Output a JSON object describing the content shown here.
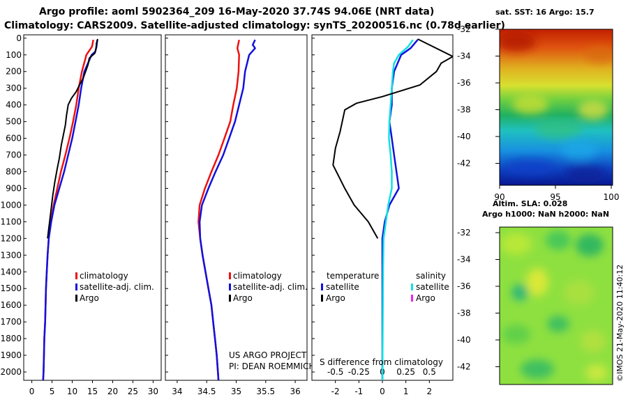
{
  "header": {
    "title_line1": "Argo profile: aoml 5902364_209 16-May-2020 37.74S 94.06E (NRT data)",
    "title_line2": "Climatology: CARS2009. Satellite-adjusted climatology: synTS_20200516.nc (0.78d earlier)"
  },
  "colors": {
    "climatology": "#ee1111",
    "satellite": "#1111dd",
    "argo": "#000000",
    "sat_salinity": "#11e0e0",
    "argo_salinity": "#ee22ee"
  },
  "chart_data": [
    {
      "type": "line",
      "name": "temperature-profile",
      "xlabel": "",
      "ylabel": "pressure",
      "xlim": [
        -2,
        32
      ],
      "ylim": [
        2050,
        -20
      ],
      "x_ticks": [
        0,
        5,
        10,
        15,
        20,
        25,
        30
      ],
      "y_ticks": [
        0,
        100,
        200,
        300,
        400,
        500,
        600,
        700,
        800,
        900,
        1000,
        1100,
        1200,
        1300,
        1400,
        1500,
        1600,
        1700,
        1800,
        1900,
        2000
      ],
      "legend": [
        "climatology",
        "satellite-adj. clim.",
        "Argo"
      ],
      "series": [
        {
          "name": "climatology",
          "points": [
            [
              15.2,
              10
            ],
            [
              14.9,
              50
            ],
            [
              13.5,
              100
            ],
            [
              12.4,
              200
            ],
            [
              11.6,
              300
            ],
            [
              11.0,
              400
            ],
            [
              10.2,
              500
            ],
            [
              9.3,
              600
            ],
            [
              8.3,
              700
            ],
            [
              7.2,
              800
            ],
            [
              6.3,
              900
            ],
            [
              5.4,
              1000
            ],
            [
              4.7,
              1100
            ],
            [
              4.2,
              1200
            ],
            [
              3.9,
              1300
            ],
            [
              3.7,
              1400
            ],
            [
              3.5,
              1500
            ],
            [
              3.4,
              1600
            ],
            [
              3.3,
              1700
            ],
            [
              3.1,
              1800
            ],
            [
              3.0,
              1900
            ],
            [
              2.9,
              2000
            ],
            [
              2.8,
              2050
            ]
          ]
        },
        {
          "name": "satellite-adj. clim.",
          "points": [
            [
              16.2,
              10
            ],
            [
              16.0,
              50
            ],
            [
              15.7,
              80
            ],
            [
              14.8,
              100
            ],
            [
              13.0,
              200
            ],
            [
              12.2,
              300
            ],
            [
              11.6,
              400
            ],
            [
              10.8,
              500
            ],
            [
              10.0,
              600
            ],
            [
              9.0,
              700
            ],
            [
              8.0,
              800
            ],
            [
              6.8,
              900
            ],
            [
              5.6,
              1000
            ],
            [
              4.8,
              1100
            ],
            [
              4.2,
              1200
            ],
            [
              3.9,
              1300
            ],
            [
              3.7,
              1400
            ],
            [
              3.5,
              1500
            ],
            [
              3.4,
              1600
            ],
            [
              3.3,
              1700
            ],
            [
              3.1,
              1800
            ],
            [
              3.0,
              1900
            ],
            [
              2.9,
              2000
            ],
            [
              2.8,
              2050
            ]
          ]
        },
        {
          "name": "Argo",
          "points": [
            [
              16.3,
              5
            ],
            [
              16.0,
              30
            ],
            [
              15.9,
              60
            ],
            [
              15.6,
              90
            ],
            [
              14.2,
              120
            ],
            [
              13.9,
              160
            ],
            [
              13.3,
              200
            ],
            [
              12.7,
              240
            ],
            [
              11.8,
              280
            ],
            [
              11.0,
              320
            ],
            [
              9.8,
              360
            ],
            [
              9.0,
              400
            ],
            [
              8.6,
              460
            ],
            [
              8.3,
              520
            ],
            [
              7.8,
              580
            ],
            [
              7.3,
              640
            ],
            [
              6.8,
              720
            ],
            [
              6.3,
              780
            ],
            [
              5.7,
              860
            ],
            [
              5.2,
              940
            ],
            [
              4.8,
              1020
            ],
            [
              4.5,
              1080
            ],
            [
              4.2,
              1140
            ],
            [
              3.9,
              1200
            ]
          ]
        }
      ]
    },
    {
      "type": "line",
      "name": "salinity-profile",
      "xlabel": "",
      "ylabel": "",
      "xlim": [
        33.8,
        36.2
      ],
      "ylim": [
        2050,
        -20
      ],
      "x_ticks": [
        34,
        34.5,
        35,
        35.5,
        36
      ],
      "x_tick_labels": [
        "34",
        "34.5",
        "35",
        "35.5",
        "36"
      ],
      "legend": [
        "climatology",
        "satellite-adj. clim.",
        "Argo"
      ],
      "series": [
        {
          "name": "climatology",
          "points": [
            [
              35.05,
              10
            ],
            [
              35.02,
              60
            ],
            [
              35.05,
              100
            ],
            [
              35.04,
              200
            ],
            [
              35.01,
              300
            ],
            [
              34.95,
              400
            ],
            [
              34.9,
              500
            ],
            [
              34.8,
              600
            ],
            [
              34.7,
              700
            ],
            [
              34.58,
              800
            ],
            [
              34.47,
              900
            ],
            [
              34.38,
              1000
            ],
            [
              34.36,
              1100
            ],
            [
              34.39,
              1200
            ],
            [
              34.43,
              1300
            ],
            [
              34.48,
              1400
            ],
            [
              34.53,
              1500
            ],
            [
              34.58,
              1600
            ],
            [
              34.61,
              1700
            ],
            [
              34.64,
              1800
            ],
            [
              34.67,
              1900
            ],
            [
              34.69,
              2000
            ],
            [
              34.7,
              2050
            ]
          ]
        },
        {
          "name": "satellite-adj. clim.",
          "points": [
            [
              35.32,
              10
            ],
            [
              35.28,
              40
            ],
            [
              35.32,
              60
            ],
            [
              35.22,
              100
            ],
            [
              35.15,
              200
            ],
            [
              35.12,
              300
            ],
            [
              35.05,
              400
            ],
            [
              34.98,
              500
            ],
            [
              34.88,
              600
            ],
            [
              34.78,
              700
            ],
            [
              34.65,
              800
            ],
            [
              34.53,
              900
            ],
            [
              34.42,
              1000
            ],
            [
              34.38,
              1100
            ],
            [
              34.39,
              1200
            ],
            [
              34.43,
              1300
            ],
            [
              34.48,
              1400
            ],
            [
              34.53,
              1500
            ],
            [
              34.58,
              1600
            ],
            [
              34.61,
              1700
            ],
            [
              34.64,
              1800
            ],
            [
              34.67,
              1900
            ],
            [
              34.69,
              2000
            ],
            [
              34.7,
              2050
            ]
          ]
        }
      ]
    },
    {
      "type": "line",
      "name": "difference-from-climatology",
      "xlabel": "S difference from climatology",
      "xlim": [
        -3,
        3
      ],
      "ylim": [
        2050,
        -20
      ],
      "x_ticks": [
        -2,
        -1,
        0,
        1,
        2
      ],
      "x_tick_labels": [
        "-2",
        "-1",
        "0",
        "1",
        "2"
      ],
      "s_ticks": [
        -0.5,
        -0.25,
        0,
        0.25,
        0.5
      ],
      "s_tick_labels": [
        "-0.5",
        "-0.25",
        "0",
        "0.25",
        "0.5"
      ],
      "legend_left": [
        "temperature",
        "satellite",
        "Argo"
      ],
      "legend_right": [
        "salinity",
        "satellite",
        "Argo"
      ],
      "series": [
        {
          "name": "temperature satellite",
          "points": [
            [
              1.5,
              10
            ],
            [
              1.2,
              60
            ],
            [
              0.8,
              100
            ],
            [
              0.5,
              200
            ],
            [
              0.4,
              300
            ],
            [
              0.4,
              400
            ],
            [
              0.3,
              500
            ],
            [
              0.4,
              600
            ],
            [
              0.5,
              700
            ],
            [
              0.6,
              800
            ],
            [
              0.7,
              900
            ],
            [
              0.3,
              1000
            ],
            [
              0.1,
              1100
            ],
            [
              0.0,
              1200
            ],
            [
              0.0,
              1400
            ],
            [
              0.0,
              2050
            ]
          ]
        },
        {
          "name": "salinity satellite",
          "points": [
            [
              1.3,
              10
            ],
            [
              1.1,
              50
            ],
            [
              0.7,
              100
            ],
            [
              0.5,
              150
            ],
            [
              0.45,
              200
            ],
            [
              0.4,
              300
            ],
            [
              0.35,
              400
            ],
            [
              0.3,
              500
            ],
            [
              0.28,
              600
            ],
            [
              0.35,
              700
            ],
            [
              0.4,
              800
            ],
            [
              0.4,
              900
            ],
            [
              0.25,
              1000
            ],
            [
              0.15,
              1100
            ],
            [
              0.05,
              1200
            ],
            [
              0.03,
              1400
            ],
            [
              0.0,
              2050
            ]
          ]
        },
        {
          "name": "temperature Argo",
          "points": [
            [
              1.5,
              5
            ],
            [
              3,
              110
            ],
            [
              2.5,
              150
            ],
            [
              2.3,
              200
            ],
            [
              1.6,
              280
            ],
            [
              0.0,
              350
            ],
            [
              -1.1,
              390
            ],
            [
              -1.6,
              430
            ],
            [
              -1.8,
              560
            ],
            [
              -2.0,
              660
            ],
            [
              -2.1,
              760
            ],
            [
              -1.6,
              900
            ],
            [
              -1.2,
              1000
            ],
            [
              -0.6,
              1100
            ],
            [
              -0.2,
              1200
            ]
          ]
        }
      ]
    }
  ],
  "maps": {
    "sst_title": "sat. SST: 16 Argo: 15.7",
    "sla_title": "Altim. SLA: 0.028",
    "sla_subtitle": "Argo h1000: NaN h2000: NaN",
    "lat_ticks": [
      "-32",
      "-34",
      "-36",
      "-38",
      "-40",
      "-42"
    ],
    "lon_ticks": [
      "90",
      "95",
      "100"
    ]
  },
  "footer": {
    "credit1": "US ARGO PROJECT",
    "credit2": "PI: DEAN ROEMMICH",
    "imos": "©IMOS 21-May-2020 11:40:12"
  }
}
